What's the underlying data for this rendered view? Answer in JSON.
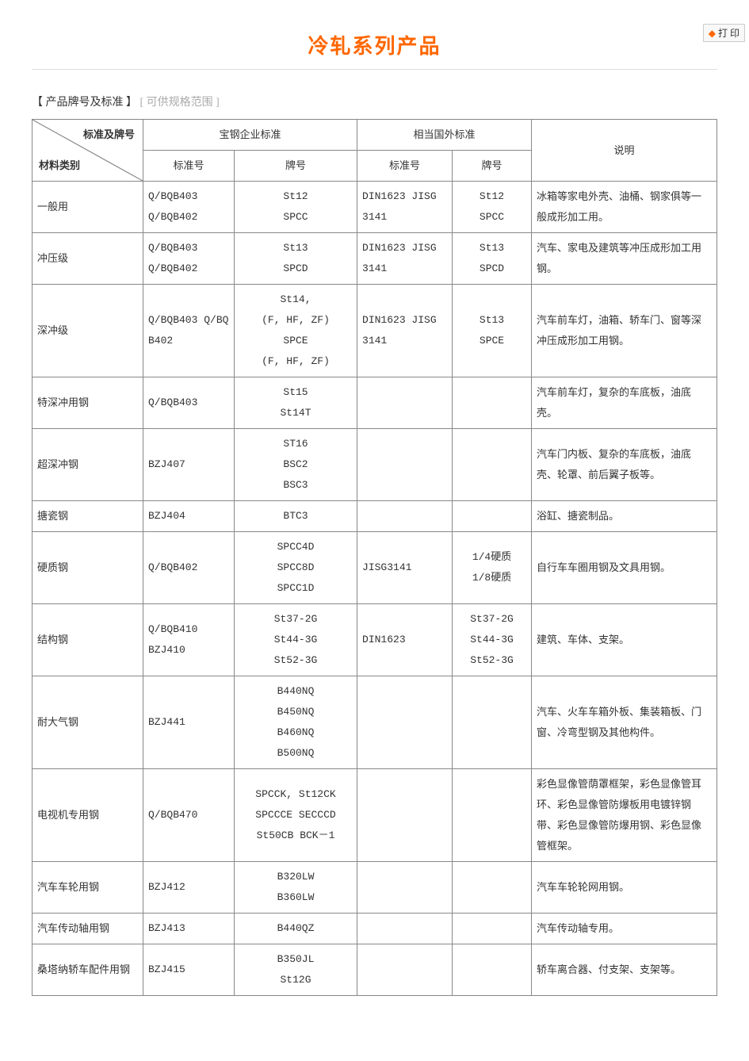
{
  "print_label": "打 印",
  "title": "冷轧系列产品",
  "section": {
    "bold": "【 产品牌号及标准 】",
    "gray": "[ 可供规格范围 ]"
  },
  "headers": {
    "diag_top": "标准及牌号",
    "diag_bot": "材料类别",
    "baosteel": "宝钢企业标准",
    "foreign": "相当国外标准",
    "desc": "说明",
    "std_no": "标准号",
    "grade": "牌号"
  },
  "rows": [
    {
      "cat": "一般用",
      "std": "Q/BQB403\nQ/BQB402",
      "grade": "St12\nSPCC",
      "fstd": "DIN1623 JISG\n3141",
      "fgrade": "St12\nSPCC",
      "desc": "冰箱等家电外壳、油桶、钢家俱等一般成形加工用。"
    },
    {
      "cat": "冲压级",
      "std": "Q/BQB403\nQ/BQB402",
      "grade": "St13\nSPCD",
      "fstd": "DIN1623 JISG\n3141",
      "fgrade": "St13\nSPCD",
      "desc": "汽车、家电及建筑等冲压成形加工用钢。"
    },
    {
      "cat": "深冲级",
      "std": "Q/BQB403 Q/BQ\nB402",
      "grade": "St14,\n(F, HF, ZF)\nSPCE\n(F, HF, ZF)",
      "fstd": "DIN1623 JISG\n3141",
      "fgrade": "St13\nSPCE",
      "desc": "汽车前车灯，油箱、轿车门、窗等深冲压成形加工用钢。"
    },
    {
      "cat": "特深冲用钢",
      "std": "Q/BQB403",
      "grade": "St15\nSt14T",
      "fstd": "",
      "fgrade": "",
      "desc": "汽车前车灯，复杂的车底板，油底壳。"
    },
    {
      "cat": "超深冲钢",
      "std": "BZJ407",
      "grade": "ST16\nBSC2\nBSC3",
      "fstd": "",
      "fgrade": "",
      "desc": "汽车门内板、复杂的车底板，油底壳、轮罩、前后翼子板等。"
    },
    {
      "cat": "搪瓷钢",
      "std": "BZJ404",
      "grade": "BTC3",
      "fstd": "",
      "fgrade": "",
      "desc": "浴缸、搪瓷制品。"
    },
    {
      "cat": "硬质钢",
      "std": "Q/BQB402",
      "grade": "SPCC4D\nSPCC8D\nSPCC1D",
      "fstd": "JISG3141",
      "fgrade": "1/4硬质\n1/8硬质",
      "desc": "自行车车圈用钢及文具用钢。"
    },
    {
      "cat": "结构钢",
      "std": "Q/BQB410\nBZJ410",
      "grade": "St37-2G\nSt44-3G\nSt52-3G",
      "fstd": "DIN1623",
      "fgrade": "St37-2G\nSt44-3G\nSt52-3G",
      "desc": "建筑、车体、支架。"
    },
    {
      "cat": "耐大气钢",
      "std": "BZJ441",
      "grade": "B440NQ\nB450NQ\nB460NQ\nB500NQ",
      "fstd": "",
      "fgrade": "",
      "desc": "汽车、火车车箱外板、集装箱板、门窗、冷弯型钢及其他构件。"
    },
    {
      "cat": "电视机专用钢",
      "std": "Q/BQB470",
      "grade": "SPCCK, St12CK\nSPCCCE SECCCD\nSt50CB BCK－1",
      "fstd": "",
      "fgrade": "",
      "desc": "彩色显像管荫罩框架，彩色显像管耳环、彩色显像管防爆板用电镀锌钢带、彩色显像管防爆用钢、彩色显像管框架。"
    },
    {
      "cat": "汽车车轮用钢",
      "std": "BZJ412",
      "grade": "B320LW\nB360LW",
      "fstd": "",
      "fgrade": "",
      "desc": "汽车车轮轮网用钢。"
    },
    {
      "cat": "汽车传动轴用钢",
      "std": "BZJ413",
      "grade": "B440QZ",
      "fstd": "",
      "fgrade": "",
      "desc": "汽车传动轴专用。"
    },
    {
      "cat": "桑塔纳轿车配件用钢",
      "std": "BZJ415",
      "grade": "B350JL\nSt12G",
      "fstd": "",
      "fgrade": "",
      "desc": "轿车离合器、付支架、支架等。"
    }
  ]
}
